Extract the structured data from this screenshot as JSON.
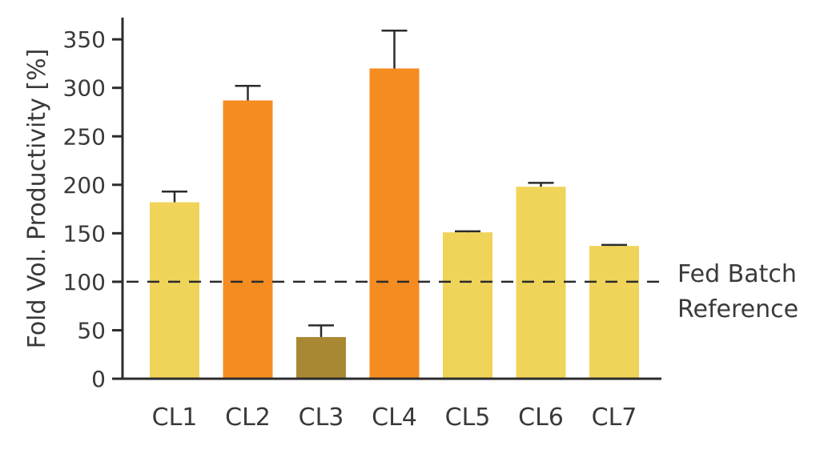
{
  "chart_data": {
    "type": "bar",
    "title": "",
    "xlabel": "",
    "ylabel": "Fold Vol. Productivity [%]",
    "ylim": [
      0,
      350
    ],
    "yticks": [
      0,
      50,
      100,
      150,
      200,
      250,
      300,
      350
    ],
    "categories": [
      "CL1",
      "CL2",
      "CL3",
      "CL4",
      "CL5",
      "CL6",
      "CL7"
    ],
    "values": [
      182,
      287,
      43,
      320,
      151,
      198,
      137
    ],
    "errors": [
      11,
      15,
      12,
      39,
      1,
      4,
      1
    ],
    "bar_colors": [
      "#f0d45a",
      "#f58c22",
      "#a88832",
      "#f58c22",
      "#f0d45a",
      "#f0d45a",
      "#f0d45a"
    ],
    "reference": {
      "value": 100,
      "label_lines": [
        "Fed Batch",
        "Reference"
      ],
      "style": "dashed"
    },
    "grid": false,
    "legend": "none"
  },
  "colors": {
    "axis": "#2b2b2b",
    "text": "#3a3a3a"
  }
}
